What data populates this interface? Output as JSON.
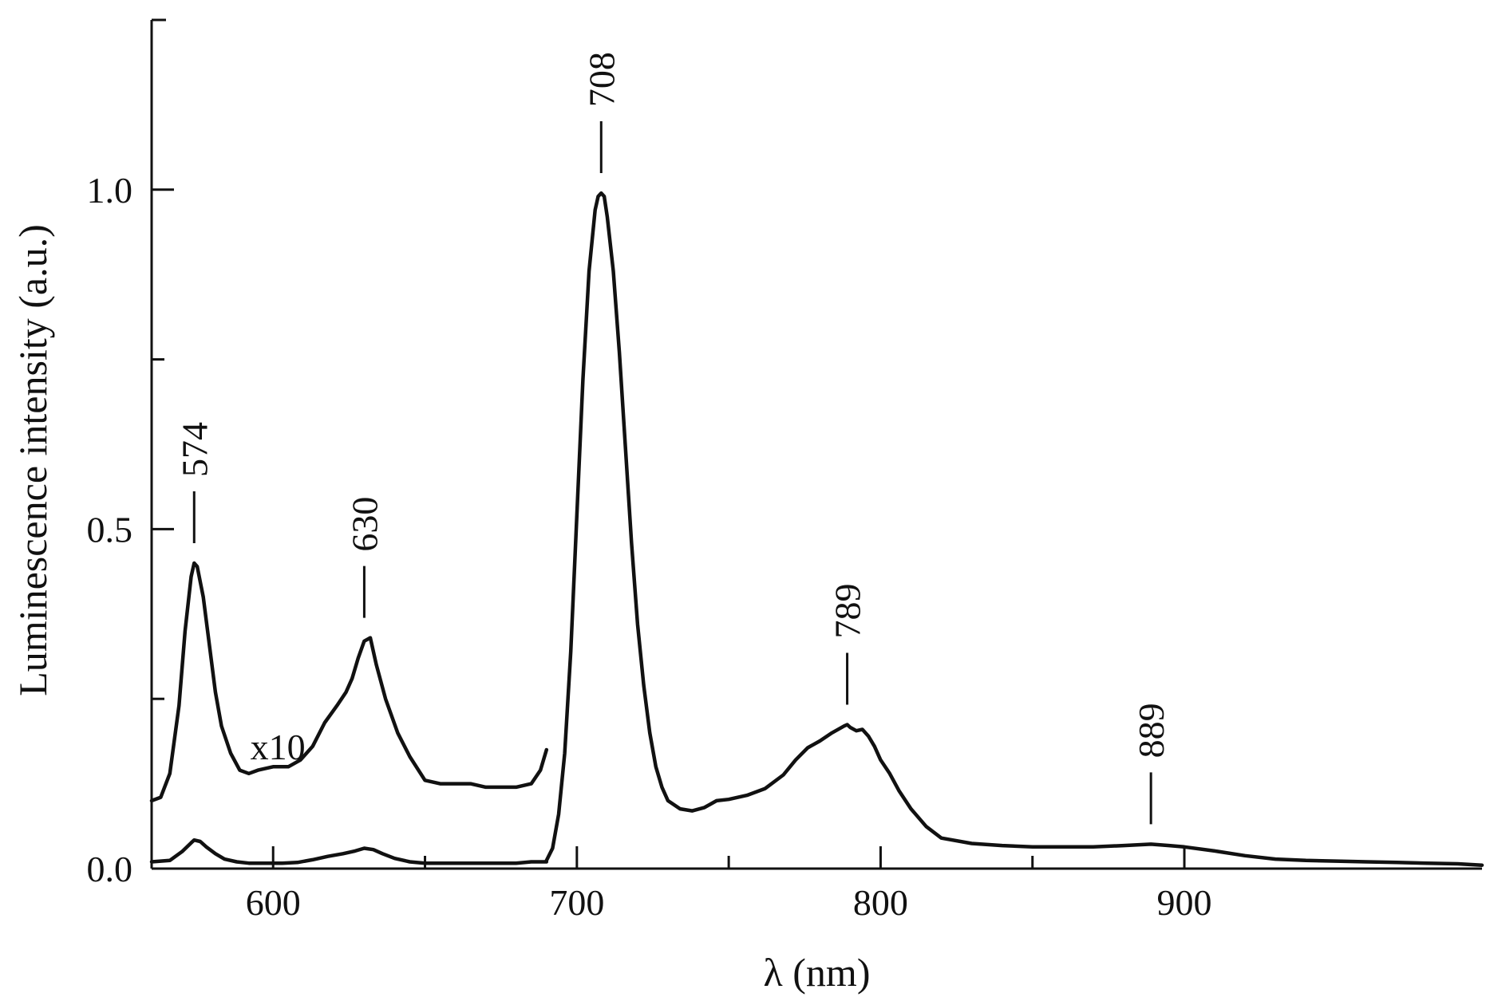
{
  "chart_data": {
    "type": "line",
    "title": "",
    "xlabel": "λ (nm)",
    "ylabel": "Luminescence intensity (a.u.)",
    "xlim": [
      560,
      998
    ],
    "ylim": [
      0,
      1.25
    ],
    "grid": false,
    "x_ticks_major": [
      600,
      700,
      800,
      900
    ],
    "x_ticks_minor": [
      650,
      750,
      850
    ],
    "y_ticks_major": [
      0.0,
      0.5,
      1.0
    ],
    "y_ticks_minor": [
      0.25,
      0.75
    ],
    "x_tick_labels": [
      "600",
      "700",
      "800",
      "900"
    ],
    "y_tick_labels": [
      "0.0",
      "0.5",
      "1.0"
    ],
    "series": [
      {
        "x": [
          560,
          566,
          570,
          573,
          574,
          576,
          578,
          581,
          584,
          588,
          592,
          597,
          603,
          608,
          613,
          618,
          623,
          627,
          630,
          633,
          636,
          640,
          645,
          650,
          655,
          660,
          665,
          670,
          675,
          680,
          685,
          690
        ],
        "y": [
          0.01,
          0.012,
          0.025,
          0.038,
          0.042,
          0.04,
          0.032,
          0.022,
          0.014,
          0.01,
          0.008,
          0.008,
          0.008,
          0.009,
          0.013,
          0.018,
          0.022,
          0.026,
          0.03,
          0.028,
          0.022,
          0.015,
          0.01,
          0.008,
          0.008,
          0.008,
          0.008,
          0.008,
          0.008,
          0.008,
          0.01,
          0.01
        ]
      },
      {
        "x": [
          690,
          692,
          694,
          696,
          698,
          700,
          702,
          704,
          706,
          707,
          708,
          709,
          710,
          712,
          714,
          716,
          718,
          720,
          722,
          724,
          726,
          728,
          730,
          734,
          738,
          742,
          746,
          750,
          756,
          762,
          768,
          772,
          776,
          780,
          784,
          788,
          789,
          790,
          792,
          794,
          796,
          798,
          800,
          803,
          806,
          810,
          815,
          820,
          830,
          840,
          850,
          860,
          870,
          880,
          889,
          895,
          900,
          910,
          920,
          930,
          940,
          950,
          960,
          970,
          980,
          990,
          998
        ],
        "y": [
          0.012,
          0.03,
          0.08,
          0.17,
          0.32,
          0.52,
          0.72,
          0.88,
          0.97,
          0.99,
          0.995,
          0.99,
          0.96,
          0.88,
          0.76,
          0.62,
          0.48,
          0.36,
          0.27,
          0.2,
          0.15,
          0.12,
          0.1,
          0.088,
          0.085,
          0.09,
          0.1,
          0.102,
          0.108,
          0.118,
          0.138,
          0.16,
          0.178,
          0.188,
          0.2,
          0.21,
          0.212,
          0.208,
          0.203,
          0.205,
          0.195,
          0.18,
          0.16,
          0.14,
          0.115,
          0.088,
          0.062,
          0.045,
          0.037,
          0.034,
          0.032,
          0.032,
          0.032,
          0.034,
          0.036,
          0.034,
          0.032,
          0.026,
          0.019,
          0.014,
          0.012,
          0.011,
          0.01,
          0.009,
          0.008,
          0.007,
          0.005
        ]
      },
      {
        "x": [
          560,
          563,
          566,
          569,
          571,
          573,
          574,
          575,
          577,
          579,
          581,
          583,
          586,
          589,
          592,
          595,
          600,
          605,
          609,
          613,
          617,
          621,
          624,
          626,
          628,
          630,
          632,
          634,
          637,
          641,
          645,
          650,
          655,
          660,
          665,
          670,
          675,
          680,
          685,
          688,
          690
        ],
        "y": [
          0.1,
          0.105,
          0.14,
          0.24,
          0.35,
          0.43,
          0.45,
          0.445,
          0.4,
          0.33,
          0.26,
          0.21,
          0.17,
          0.145,
          0.14,
          0.145,
          0.15,
          0.15,
          0.16,
          0.18,
          0.215,
          0.24,
          0.26,
          0.28,
          0.31,
          0.335,
          0.34,
          0.3,
          0.25,
          0.2,
          0.165,
          0.13,
          0.125,
          0.125,
          0.125,
          0.12,
          0.12,
          0.12,
          0.125,
          0.145,
          0.175
        ]
      }
    ],
    "annotations": {
      "peaks": [
        {
          "label": "574",
          "x": 574,
          "y": 0.45
        },
        {
          "label": "630",
          "x": 630,
          "y": 0.34
        },
        {
          "label": "708",
          "x": 708,
          "y": 0.995
        },
        {
          "label": "789",
          "x": 789,
          "y": 0.212
        },
        {
          "label": "889",
          "x": 889,
          "y": 0.036
        }
      ],
      "scale_note": {
        "text": "x10",
        "x": 593,
        "y": 0.18
      }
    }
  }
}
